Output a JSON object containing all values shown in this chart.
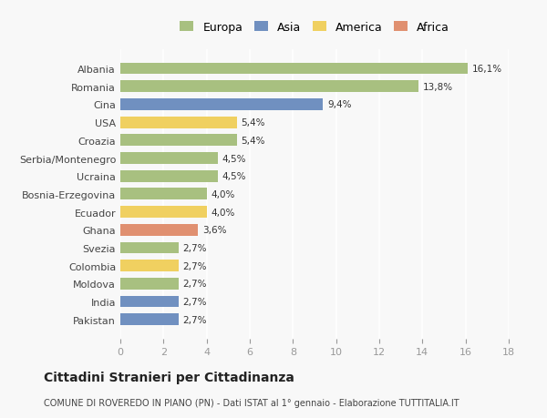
{
  "countries": [
    "Pakistan",
    "India",
    "Moldova",
    "Colombia",
    "Svezia",
    "Ghana",
    "Ecuador",
    "Bosnia-Erzegovina",
    "Ucraina",
    "Serbia/Montenegro",
    "Croazia",
    "USA",
    "Cina",
    "Romania",
    "Albania"
  ],
  "values": [
    2.7,
    2.7,
    2.7,
    2.7,
    2.7,
    3.6,
    4.0,
    4.0,
    4.5,
    4.5,
    5.4,
    5.4,
    9.4,
    13.8,
    16.1
  ],
  "labels": [
    "2,7%",
    "2,7%",
    "2,7%",
    "2,7%",
    "2,7%",
    "3,6%",
    "4,0%",
    "4,0%",
    "4,5%",
    "4,5%",
    "5,4%",
    "5,4%",
    "9,4%",
    "13,8%",
    "16,1%"
  ],
  "continents": [
    "Asia",
    "Asia",
    "Europa",
    "America",
    "Europa",
    "Africa",
    "America",
    "Europa",
    "Europa",
    "Europa",
    "Europa",
    "America",
    "Asia",
    "Europa",
    "Europa"
  ],
  "colors": {
    "Europa": "#a8c080",
    "Asia": "#7090c0",
    "America": "#f0d060",
    "Africa": "#e09070"
  },
  "legend_labels": [
    "Europa",
    "Asia",
    "America",
    "Africa"
  ],
  "legend_colors": [
    "#a8c080",
    "#7090c0",
    "#f0d060",
    "#e09070"
  ],
  "title": "Cittadini Stranieri per Cittadinanza",
  "subtitle": "COMUNE DI ROVEREDO IN PIANO (PN) - Dati ISTAT al 1° gennaio - Elaborazione TUTTITALIA.IT",
  "xlim": [
    0,
    18
  ],
  "xticks": [
    0,
    2,
    4,
    6,
    8,
    10,
    12,
    14,
    16,
    18
  ],
  "background_color": "#f8f8f8",
  "bar_height": 0.65
}
